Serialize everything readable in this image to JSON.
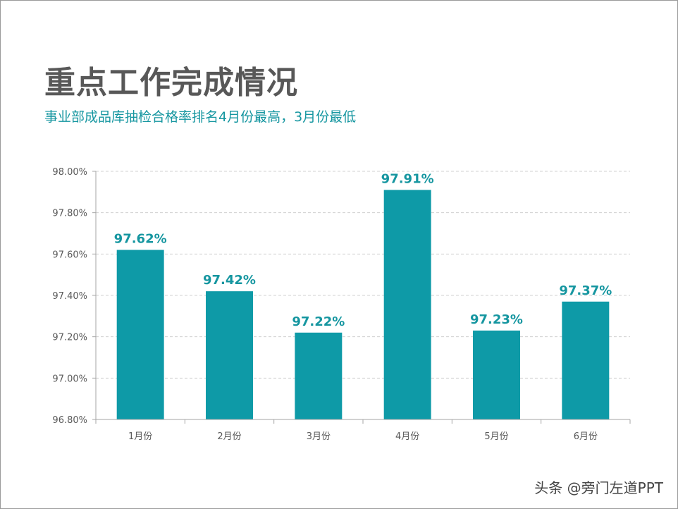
{
  "title": "重点工作完成情况",
  "subtitle": "事业部成品库抽检合格率排名4月份最高，3月份最低",
  "watermark": "头条 @旁门左道PPT",
  "colors": {
    "bar": "#0e9aa7",
    "label": "#1596a0",
    "title": "#585858",
    "grid": "#d0d0d0",
    "axis": "#a6a6a6"
  },
  "chart_data": {
    "type": "bar",
    "categories": [
      "1月份",
      "2月份",
      "3月份",
      "4月份",
      "5月份",
      "6月份"
    ],
    "values": [
      97.62,
      97.42,
      97.22,
      97.91,
      97.23,
      97.37
    ],
    "data_labels": [
      "97.62%",
      "97.42%",
      "97.22%",
      "97.91%",
      "97.23%",
      "97.37%"
    ],
    "y_ticks": [
      96.8,
      97.0,
      97.2,
      97.4,
      97.6,
      97.8,
      98.0
    ],
    "y_tick_labels": [
      "96.80%",
      "97.00%",
      "97.20%",
      "97.40%",
      "97.60%",
      "97.80%",
      "98.00%"
    ],
    "ylim": [
      96.8,
      98.0
    ],
    "grid": true,
    "xlabel": "",
    "ylabel": ""
  }
}
